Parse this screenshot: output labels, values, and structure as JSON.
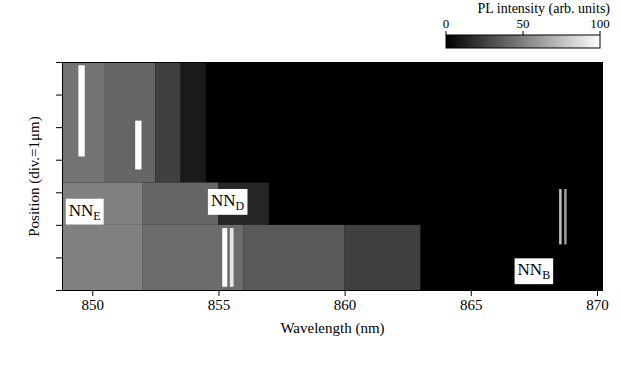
{
  "chart_data": {
    "type": "heatmap",
    "xlabel": "Wavelength (nm)",
    "ylabel": "Position (div.=1μm)",
    "xlim": [
      848.8,
      870.2
    ],
    "xticks": [
      850,
      855,
      860,
      865,
      870
    ],
    "ylim": [
      0,
      7
    ],
    "yticks": [
      0,
      1,
      2,
      3,
      4,
      5,
      6,
      7
    ],
    "tick_labels": "x",
    "colorbar": {
      "label": "PL intensity (arb. units)",
      "range": [
        0,
        100
      ],
      "ticks": [
        0,
        50,
        100
      ]
    },
    "cells": [
      {
        "x1": 848.8,
        "x2": 870.2,
        "y1": 0,
        "y2": 7,
        "value": 0
      },
      {
        "x1": 848.8,
        "x2": 850.5,
        "y1": 3.3,
        "y2": 7,
        "value": 45
      },
      {
        "x1": 850.5,
        "x2": 852.5,
        "y1": 3.3,
        "y2": 7,
        "value": 40
      },
      {
        "x1": 852.5,
        "x2": 853.5,
        "y1": 3.3,
        "y2": 7,
        "value": 25
      },
      {
        "x1": 853.5,
        "x2": 854.5,
        "y1": 3.3,
        "y2": 7,
        "value": 10
      },
      {
        "x1": 848.8,
        "x2": 852,
        "y1": 2,
        "y2": 3.3,
        "value": 50
      },
      {
        "x1": 852,
        "x2": 855,
        "y1": 2,
        "y2": 3.3,
        "value": 40
      },
      {
        "x1": 855,
        "x2": 857,
        "y1": 2,
        "y2": 3.3,
        "value": 15
      },
      {
        "x1": 848.8,
        "x2": 852,
        "y1": 0,
        "y2": 2,
        "value": 50
      },
      {
        "x1": 852,
        "x2": 856,
        "y1": 0,
        "y2": 2,
        "value": 42
      },
      {
        "x1": 856,
        "x2": 860,
        "y1": 0,
        "y2": 2,
        "value": 35
      },
      {
        "x1": 860,
        "x2": 863,
        "y1": 0,
        "y2": 2,
        "value": 25
      },
      {
        "x1": 849.45,
        "x2": 849.7,
        "y1": 4.1,
        "y2": 6.9,
        "value": 100
      },
      {
        "x1": 851.7,
        "x2": 851.95,
        "y1": 3.7,
        "y2": 5.2,
        "value": 100
      },
      {
        "x1": 855.15,
        "x2": 855.35,
        "y1": 0.1,
        "y2": 1.9,
        "value": 100
      },
      {
        "x1": 855.45,
        "x2": 855.6,
        "y1": 0.1,
        "y2": 1.9,
        "value": 90
      },
      {
        "x1": 868.5,
        "x2": 868.6,
        "y1": 1.4,
        "y2": 3.1,
        "value": 75
      },
      {
        "x1": 868.7,
        "x2": 868.8,
        "y1": 1.4,
        "y2": 3.1,
        "value": 60
      }
    ],
    "annotations": [
      {
        "text": "NN",
        "subscript": "E",
        "x": 849.7,
        "y": 2.4
      },
      {
        "text": "NN",
        "subscript": "D",
        "x": 855.36,
        "y": 2.7
      },
      {
        "text": "NN",
        "subscript": "B",
        "x": 867.5,
        "y": 0.57
      }
    ]
  }
}
